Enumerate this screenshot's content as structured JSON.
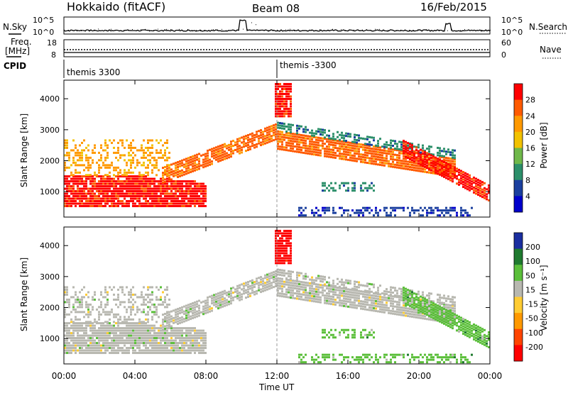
{
  "chart_data": {
    "type": "heatmap",
    "header": {
      "station": "Hokkaido (fitACF)",
      "beam": "Beam 08",
      "date": "16/Feb/2015"
    },
    "time_axis": {
      "label": "Time UT",
      "ticks": [
        "00:00",
        "04:00",
        "08:00",
        "12:00",
        "16:00",
        "20:00",
        "00:00"
      ],
      "range_hours": [
        0,
        24
      ]
    },
    "noise_panel": {
      "left_label": "N.Sky",
      "right_label": "N.Search",
      "ticks_left": [
        "10^5",
        "10^0"
      ],
      "ticks_right": [
        "10^5",
        "10^0"
      ]
    },
    "freq_panel": {
      "left_label": "Freq.",
      "left_unit": "[MHz]",
      "left_ticks": [
        "18",
        "8"
      ],
      "right_label": "Nave",
      "right_ticks": [
        "60",
        "0"
      ]
    },
    "cpid": {
      "label": "CPID",
      "segments": [
        {
          "name": "themis 3300",
          "start_hour": 0
        },
        {
          "name": "themis -3300",
          "start_hour": 12
        }
      ]
    },
    "power_panel": {
      "ylabel": "Slant Range [km]",
      "yticks": [
        "4000",
        "3000",
        "2000",
        "1000"
      ],
      "yrange_km": [
        180,
        4600
      ],
      "colorbar_label": "Power [dB]",
      "colorbar_ticks": [
        "28",
        "24",
        "20",
        "16",
        "12",
        "8",
        "4"
      ],
      "colorbar_range": [
        0,
        32
      ],
      "colors": [
        "#ff0000",
        "#ff5a00",
        "#ff9900",
        "#f2c200",
        "#6fb84a",
        "#2c8f6a",
        "#1a3f9e",
        "#0000cc"
      ]
    },
    "velocity_panel": {
      "ylabel": "Slant Range [km]",
      "yticks": [
        "4000",
        "3000",
        "2000",
        "1000"
      ],
      "yrange_km": [
        180,
        4600
      ],
      "colorbar_label": "Velocity [m s⁻¹]",
      "colorbar_ticks": [
        "200",
        "100",
        "50",
        "15",
        "-15",
        "-50",
        "-100",
        "-200"
      ],
      "colors": [
        "#1a2ea0",
        "#1f7a2f",
        "#5bbf3a",
        "#b8b8b0",
        "#ffcc33",
        "#ff9900",
        "#ff4400",
        "#ff0000"
      ]
    },
    "scatter_regions": [
      {
        "band": "near",
        "range_km": [
          450,
          1500
        ],
        "hours": [
          0,
          8
        ],
        "power_db": 28,
        "velocity": "±15"
      },
      {
        "band": "rising_arc",
        "range_km": [
          1500,
          3300
        ],
        "hours": [
          5.5,
          12
        ],
        "power_db": 22,
        "velocity": "±15"
      },
      {
        "band": "far_arc",
        "range_km": [
          2000,
          3000
        ],
        "hours": [
          12,
          22
        ],
        "power_db": 20,
        "velocity": "±15"
      },
      {
        "band": "evening_trail",
        "range_km": [
          900,
          2500
        ],
        "hours": [
          19,
          24
        ],
        "power_db": 26,
        "velocity": "50"
      },
      {
        "band": "high_range_noon",
        "range_km": [
          3300,
          4500
        ],
        "hours": [
          11.8,
          12.8
        ],
        "power_db": 28,
        "velocity": "-200"
      }
    ]
  }
}
